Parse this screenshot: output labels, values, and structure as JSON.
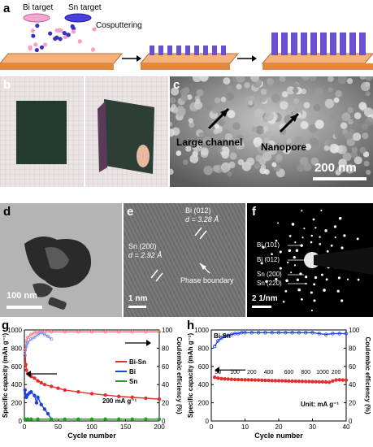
{
  "panel_a": {
    "label": "a",
    "bi_target": "Bi target",
    "sn_target": "Sn target",
    "process": "Cosputtering",
    "colors": {
      "substrate": "#f0a060",
      "bi": "#f5a0c8",
      "sn": "#3a2fc0",
      "pillar": "#6a4fd0"
    }
  },
  "panel_b": {
    "label": "b"
  },
  "panel_c": {
    "label": "c",
    "annotation_channel": "Large channel",
    "annotation_pore": "Nanopore",
    "scalebar": "200 nm"
  },
  "panel_d": {
    "label": "d",
    "scalebar": "100 nm"
  },
  "panel_e": {
    "label": "e",
    "bi_plane": "Bi (012)",
    "bi_d": "d = 3.28 Å",
    "sn_plane": "Sn (200)",
    "sn_d": "d = 2.92 Å",
    "boundary": "Phase boundary",
    "scalebar": "1 nm"
  },
  "panel_f": {
    "label": "f",
    "rings": [
      "Bi (101)",
      "Bi (012)",
      "Sn (200)",
      "Sn (220)"
    ],
    "scalebar": "2 1/nm"
  },
  "chart_data": [
    {
      "panel": "g",
      "type": "scatter",
      "xlabel": "Cycle number",
      "ylabel": "Specific capacity (mAh g⁻¹)",
      "y2label": "Coulombic efficiency (%)",
      "xlim": [
        0,
        200
      ],
      "ylim": [
        0,
        1000
      ],
      "y2lim": [
        0,
        100
      ],
      "xticks": [
        "0",
        "50",
        "100",
        "150",
        "200"
      ],
      "yticks": [
        "0",
        "200",
        "400",
        "600",
        "800",
        "1000"
      ],
      "y2ticks": [
        "0",
        "20",
        "40",
        "60",
        "80",
        "100"
      ],
      "annotation": "200 mA g⁻¹",
      "legend": [
        {
          "name": "Bi-Sn",
          "marker": "/—",
          "color": "#e03030"
        },
        {
          "name": "Bi",
          "marker": "/—",
          "color": "#2040e0"
        },
        {
          "name": "Sn",
          "marker": "—",
          "color": "#20a020"
        }
      ],
      "series": [
        {
          "name": "Bi-Sn",
          "axis": "capacity",
          "color": "#e03030",
          "x": [
            1,
            2,
            3,
            5,
            8,
            10,
            15,
            20,
            25,
            30,
            40,
            50,
            60,
            80,
            100,
            120,
            140,
            160,
            180,
            200
          ],
          "y": [
            780,
            620,
            560,
            520,
            500,
            490,
            470,
            440,
            420,
            400,
            380,
            360,
            340,
            320,
            300,
            285,
            270,
            260,
            250,
            240
          ]
        },
        {
          "name": "Bi",
          "axis": "capacity",
          "color": "#2040e0",
          "x": [
            1,
            2,
            3,
            5,
            8,
            10,
            15,
            18,
            20,
            25,
            30,
            35,
            40
          ],
          "y": [
            340,
            280,
            260,
            290,
            310,
            320,
            280,
            200,
            260,
            180,
            130,
            80,
            20
          ]
        },
        {
          "name": "Sn",
          "axis": "capacity",
          "color": "#20a020",
          "x": [
            1,
            5,
            10,
            20,
            40,
            60,
            80,
            100,
            120,
            140,
            160,
            180,
            200
          ],
          "y": [
            20,
            20,
            20,
            20,
            20,
            20,
            20,
            20,
            20,
            20,
            20,
            20,
            20
          ]
        },
        {
          "name": "Bi-Sn",
          "axis": "efficiency",
          "color": "#f08080",
          "x": [
            1,
            3,
            5,
            10,
            15,
            20,
            30,
            40,
            60,
            80,
            100,
            120,
            140,
            160,
            180,
            200
          ],
          "y": [
            78,
            88,
            92,
            95,
            97,
            98,
            98,
            98,
            98,
            98,
            98,
            98,
            98,
            98,
            98,
            98
          ]
        },
        {
          "name": "Bi",
          "axis": "efficiency",
          "color": "#8090f0",
          "x": [
            1,
            3,
            5,
            10,
            15,
            20,
            25,
            30,
            35,
            40
          ],
          "y": [
            72,
            82,
            86,
            90,
            92,
            95,
            97,
            95,
            93,
            90
          ]
        }
      ]
    },
    {
      "panel": "h",
      "type": "scatter",
      "title": "Bi-Sn",
      "xlabel": "Cycle number",
      "ylabel": "Specific capacity (mAh g⁻¹)",
      "y2label": "Coulombic efficiency (%)",
      "xlim": [
        0,
        40
      ],
      "ylim": [
        0,
        1000
      ],
      "y2lim": [
        0,
        100
      ],
      "xticks": [
        "0",
        "10",
        "20",
        "30",
        "40"
      ],
      "yticks": [
        "0",
        "200",
        "400",
        "600",
        "800",
        "1000"
      ],
      "y2ticks": [
        "0",
        "20",
        "40",
        "60",
        "80",
        "100"
      ],
      "rate_labels": [
        "50",
        "100",
        "200",
        "400",
        "600",
        "800",
        "1000",
        "200"
      ],
      "rate_label_x": [
        2,
        7,
        12,
        17,
        23,
        28,
        33,
        37
      ],
      "unit": "Unit: mA g⁻¹",
      "series": [
        {
          "name": "capacity",
          "axis": "capacity",
          "color": "#e03030",
          "x": [
            1,
            2,
            3,
            4,
            5,
            6,
            7,
            8,
            9,
            10,
            11,
            12,
            13,
            14,
            15,
            16,
            17,
            18,
            19,
            20,
            21,
            22,
            23,
            24,
            25,
            26,
            27,
            28,
            29,
            30,
            31,
            32,
            33,
            34,
            35,
            36,
            37,
            38,
            39,
            40
          ],
          "y": [
            480,
            470,
            465,
            462,
            460,
            458,
            456,
            455,
            454,
            453,
            452,
            451,
            450,
            449,
            448,
            446,
            445,
            444,
            443,
            442,
            441,
            440,
            439,
            438,
            437,
            436,
            435,
            434,
            433,
            432,
            431,
            430,
            430,
            428,
            426,
            440,
            450,
            452,
            450,
            448
          ]
        },
        {
          "name": "efficiency",
          "axis": "efficiency",
          "color": "#2040e0",
          "x": [
            1,
            2,
            3,
            4,
            5,
            6,
            7,
            8,
            9,
            10,
            12,
            14,
            16,
            18,
            20,
            22,
            24,
            26,
            28,
            30,
            32,
            34,
            36,
            38,
            40
          ],
          "y": [
            82,
            88,
            91,
            93,
            94,
            95,
            96,
            96,
            97,
            97,
            97,
            97,
            97,
            97,
            97,
            97,
            97,
            97,
            97,
            97,
            96,
            95,
            96,
            96,
            96
          ]
        }
      ]
    }
  ]
}
